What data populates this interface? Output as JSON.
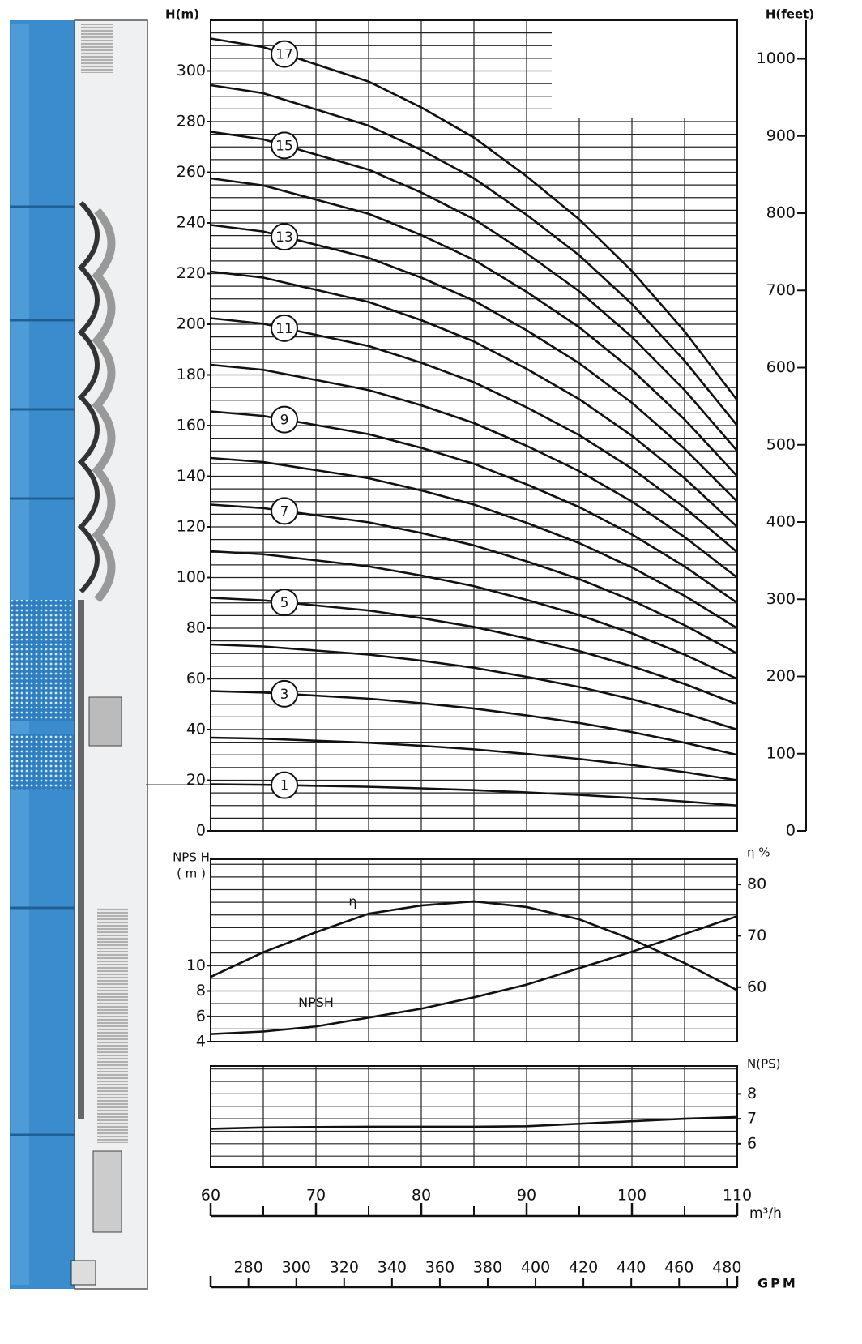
{
  "chart_data": [
    {
      "type": "line",
      "ylabel": "H(m)",
      "y2label": "H(feet)",
      "x": [
        60,
        65,
        70,
        75,
        80,
        85,
        90,
        95,
        100,
        105,
        110
      ],
      "xlim": [
        60,
        110
      ],
      "ylim": [
        0,
        320
      ],
      "yticks": [
        0,
        20,
        40,
        60,
        80,
        100,
        120,
        140,
        160,
        180,
        200,
        220,
        240,
        260,
        280,
        300
      ],
      "ygrid": [
        0,
        5,
        10,
        15,
        20,
        25,
        30,
        35,
        40,
        45,
        50,
        55,
        60,
        65,
        70,
        75,
        80,
        85,
        90,
        95,
        100,
        105,
        110,
        115,
        120,
        125,
        130,
        135,
        140,
        145,
        150,
        155,
        160,
        165,
        170,
        175,
        180,
        185,
        190,
        195,
        200,
        205,
        210,
        215,
        220,
        225,
        230,
        235,
        240,
        245,
        250,
        255,
        260,
        265,
        270,
        275,
        280,
        285,
        290,
        295,
        300,
        305,
        310,
        315,
        320
      ],
      "y2lim": [
        0,
        1049.9
      ],
      "y2ticks": [
        0,
        100,
        200,
        300,
        400,
        500,
        600,
        700,
        800,
        900,
        1000
      ],
      "grid": true,
      "color": "#111111",
      "series": [
        {
          "name": "1",
          "values": [
            18.4,
            18.2,
            17.8,
            17.4,
            16.8,
            16.1,
            15.2,
            14.2,
            13.0,
            11.6,
            10.0
          ]
        },
        {
          "values": [
            36.8,
            36.4,
            35.6,
            34.8,
            33.6,
            32.2,
            30.4,
            28.4,
            26,
            23.2,
            20
          ]
        },
        {
          "name": "3",
          "values": [
            55.2,
            54.6,
            53.4,
            52.2,
            50.4,
            48.3,
            45.6,
            42.6,
            39,
            34.8,
            30
          ]
        },
        {
          "values": [
            73.6,
            72.8,
            71.2,
            69.6,
            67.2,
            64.4,
            60.8,
            56.8,
            52,
            46.4,
            40
          ]
        },
        {
          "name": "5",
          "values": [
            92,
            91,
            89,
            87,
            84,
            80.5,
            76,
            71,
            65,
            58,
            50
          ]
        },
        {
          "values": [
            110.4,
            109.2,
            106.8,
            104.4,
            100.8,
            96.6,
            91.2,
            85.2,
            78,
            69.6,
            60
          ]
        },
        {
          "name": "7",
          "values": [
            128.8,
            127.4,
            124.6,
            121.8,
            117.6,
            112.7,
            106.4,
            99.4,
            91,
            81.2,
            70
          ]
        },
        {
          "values": [
            147.2,
            145.6,
            142.4,
            139.2,
            134.4,
            128.8,
            121.6,
            113.6,
            104,
            92.8,
            80
          ]
        },
        {
          "name": "9",
          "values": [
            165.6,
            163.8,
            160.2,
            156.6,
            151.2,
            144.9,
            136.8,
            127.8,
            117,
            104.4,
            90
          ]
        },
        {
          "values": [
            184,
            182,
            178,
            174,
            168,
            161,
            152,
            142,
            130,
            116,
            100
          ]
        },
        {
          "name": "11",
          "values": [
            202.4,
            200.2,
            195.8,
            191.4,
            184.8,
            177.1,
            167.2,
            156.2,
            143,
            127.6,
            110
          ]
        },
        {
          "values": [
            220.8,
            218.4,
            213.6,
            208.8,
            201.6,
            193.2,
            182.4,
            170.4,
            156,
            139.2,
            120
          ]
        },
        {
          "name": "13",
          "values": [
            239.2,
            236.6,
            231.4,
            226.2,
            218.4,
            209.3,
            197.6,
            184.6,
            169,
            150.8,
            130
          ]
        },
        {
          "values": [
            257.6,
            254.8,
            249.2,
            243.6,
            235.2,
            225.4,
            212.8,
            198.8,
            182,
            162.4,
            140
          ]
        },
        {
          "name": "15",
          "values": [
            276,
            273,
            267,
            261,
            252,
            241.5,
            228,
            213,
            195,
            174,
            150
          ]
        },
        {
          "values": [
            294.4,
            291.2,
            284.8,
            278.4,
            268.8,
            257.6,
            243.2,
            227.2,
            208,
            185.6,
            160
          ]
        },
        {
          "name": "17",
          "values": [
            312.8,
            309.4,
            302.6,
            295.8,
            285.6,
            273.7,
            258.4,
            241.4,
            221,
            197.2,
            170
          ]
        }
      ]
    },
    {
      "type": "line",
      "ylabel": [
        "NPS H",
        "( m )"
      ],
      "y2label": "η %",
      "x": [
        60,
        65,
        70,
        75,
        80,
        85,
        90,
        95,
        100,
        105,
        110
      ],
      "xlim": [
        60,
        110
      ],
      "ylim": [
        4,
        18.4
      ],
      "yticks": [
        4,
        6,
        8,
        10
      ],
      "ygrid": [
        4,
        5,
        6,
        7,
        8,
        9,
        10,
        11,
        12,
        13,
        14,
        15,
        16,
        17,
        18
      ],
      "y2lim": [
        49.4,
        84.9
      ],
      "y2ticks": [
        60,
        70,
        80
      ],
      "grid": true,
      "color": "#111111",
      "series": [
        {
          "name": "η",
          "axis": "y2",
          "values": [
            62,
            66.8,
            70.7,
            74.3,
            75.9,
            76.7,
            75.6,
            73.2,
            69.3,
            64.7,
            59.4
          ]
        },
        {
          "name": "NPSH",
          "values": [
            4.6,
            4.8,
            5.2,
            5.9,
            6.6,
            7.5,
            8.5,
            9.8,
            11.1,
            12.5,
            13.9
          ]
        }
      ]
    },
    {
      "type": "line",
      "y2label": "N(PS)",
      "x": [
        60,
        65,
        70,
        75,
        80,
        85,
        90,
        95,
        100,
        105,
        110
      ],
      "xlim": [
        60,
        110
      ],
      "xticks": [
        60,
        70,
        80,
        90,
        100,
        110
      ],
      "xlabel": "m³/h",
      "x2lim": [
        264.2,
        484.3
      ],
      "x2ticks": [
        280,
        300,
        320,
        340,
        360,
        380,
        400,
        420,
        440,
        460,
        480
      ],
      "x2label": "GPM",
      "y2lim": [
        5.05,
        9.12
      ],
      "y2ticks": [
        6,
        7,
        8
      ],
      "y2grid": [
        5.5,
        6,
        6.5,
        7,
        7.5,
        8,
        8.5,
        9
      ],
      "grid": true,
      "color": "#111111",
      "series": [
        {
          "axis": "y2",
          "values": [
            6.6,
            6.65,
            6.67,
            6.68,
            6.68,
            6.68,
            6.7,
            6.8,
            6.9,
            7.0,
            7.07
          ]
        }
      ]
    }
  ]
}
